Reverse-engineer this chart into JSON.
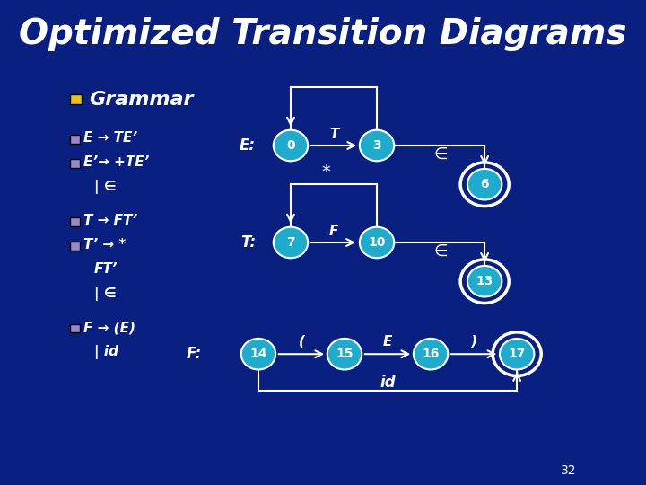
{
  "title": "Optimized Transition Diagrams",
  "title_fontsize": 28,
  "title_fontweight": "bold",
  "title_color": "white",
  "bg_color": "#0a2080",
  "node_color": "#20aacc",
  "node_edge_color": "white",
  "node_text_color": "white",
  "arrow_color": "white",
  "line_color": "white",
  "text_color": "white",
  "grammar_bullet_color": "#e8c020",
  "purple_bullet_color": "#9988cc",
  "grammar_title": "Grammar",
  "page_number": "32"
}
